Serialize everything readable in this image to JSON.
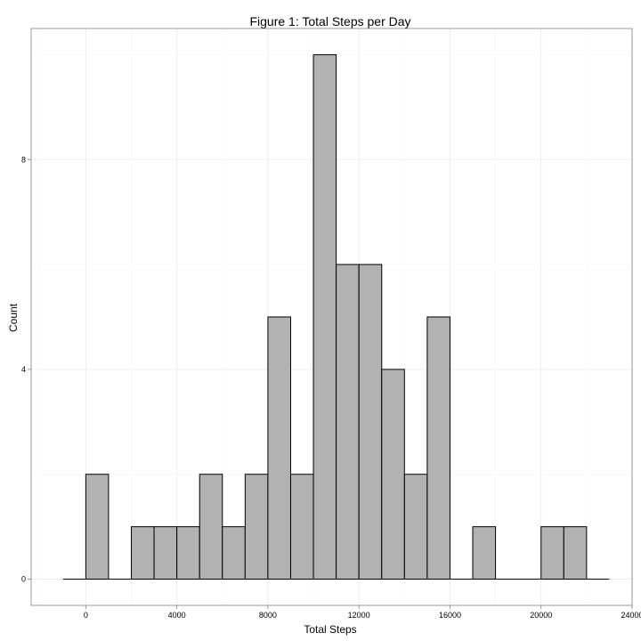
{
  "chart_data": {
    "type": "bar",
    "title": "Figure 1: Total Steps per Day",
    "xlabel": "Total Steps",
    "ylabel": "Count",
    "xlim": [
      -2400,
      24000
    ],
    "ylim": [
      -0.5,
      10.5
    ],
    "x_ticks": [
      0,
      4000,
      8000,
      12000,
      16000,
      20000,
      24000
    ],
    "x_tick_labels": [
      "0",
      "4000",
      "8000",
      "12000",
      "16000",
      "20000",
      "24000"
    ],
    "y_ticks": [
      0,
      4,
      8
    ],
    "y_tick_labels": [
      "0",
      "4",
      "8"
    ],
    "x_minor_ticks": [
      -2000,
      2000,
      6000,
      10000,
      14000,
      18000,
      22000
    ],
    "y_minor_ticks": [
      2,
      6,
      10
    ],
    "baseline_range": [
      -1000,
      23000
    ],
    "bin_width": 1000,
    "bins": [
      {
        "start": 0,
        "count": 2
      },
      {
        "start": 2000,
        "count": 1
      },
      {
        "start": 3000,
        "count": 1
      },
      {
        "start": 4000,
        "count": 1
      },
      {
        "start": 5000,
        "count": 2
      },
      {
        "start": 6000,
        "count": 1
      },
      {
        "start": 7000,
        "count": 2
      },
      {
        "start": 8000,
        "count": 5
      },
      {
        "start": 9000,
        "count": 2
      },
      {
        "start": 10000,
        "count": 10
      },
      {
        "start": 11000,
        "count": 6
      },
      {
        "start": 12000,
        "count": 6
      },
      {
        "start": 13000,
        "count": 4
      },
      {
        "start": 14000,
        "count": 2
      },
      {
        "start": 15000,
        "count": 5
      },
      {
        "start": 17000,
        "count": 1
      },
      {
        "start": 20000,
        "count": 1
      },
      {
        "start": 21000,
        "count": 1
      }
    ],
    "grid": true,
    "legend": "none",
    "colors": {
      "bar_fill": "#b2b2b2",
      "bar_stroke": "#000000",
      "panel_border": "#7f7f7f"
    }
  }
}
